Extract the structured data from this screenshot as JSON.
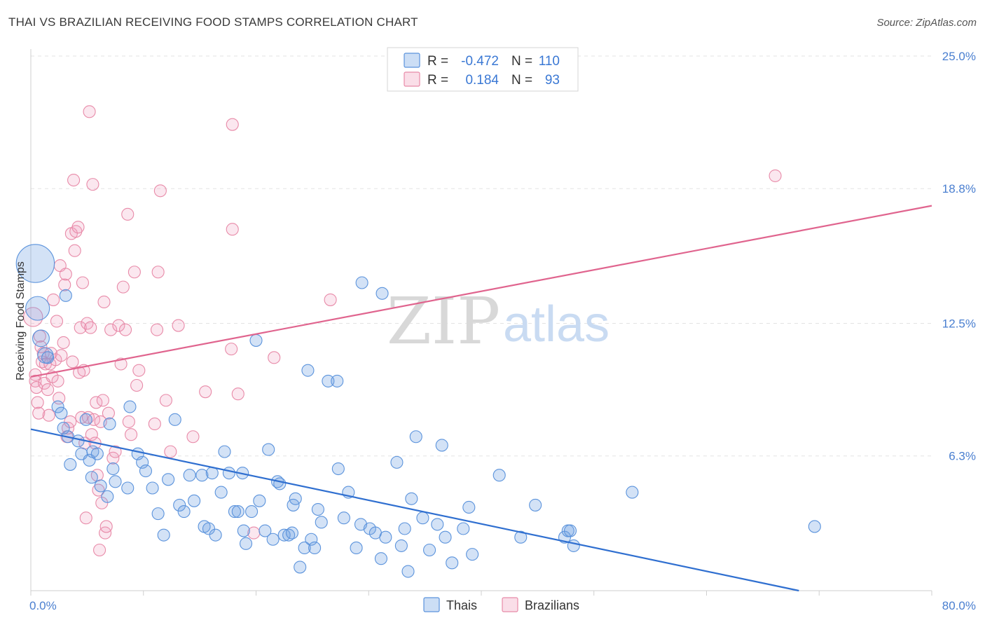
{
  "header": {
    "title": "THAI VS BRAZILIAN RECEIVING FOOD STAMPS CORRELATION CHART",
    "source": "Source: ZipAtlas.com"
  },
  "watermark": {
    "zip": "ZIP",
    "atlas": "atlas"
  },
  "colors": {
    "thai": "#5b93dc",
    "thai_fill": "rgba(110,160,225,0.30)",
    "thai_line": "#2f6fd0",
    "brazil": "#e88aa8",
    "brazil_fill": "rgba(240,160,190,0.25)",
    "brazil_line": "#e0648e",
    "grid": "#e3e3e3",
    "tick_label": "#4a7fd0"
  },
  "legend": {
    "rows": [
      {
        "r_label": "R =",
        "r_value": "-0.472",
        "n_label": "N =",
        "n_value": "110"
      },
      {
        "r_label": "R =",
        "r_value": "0.184",
        "n_label": "N =",
        "n_value": "93"
      }
    ]
  },
  "bottom_legend": {
    "thai": "Thais",
    "brazil": "Brazilians"
  },
  "chart_data": {
    "type": "scatter",
    "title": "THAI VS BRAZILIAN RECEIVING FOOD STAMPS CORRELATION CHART",
    "xlabel": "",
    "ylabel": "Receiving Food Stamps",
    "xlim": [
      0,
      80
    ],
    "ylim": [
      0,
      25
    ],
    "x_tick_labels": [
      "0.0%",
      "80.0%"
    ],
    "y_ticks": [
      6.3,
      12.5,
      18.8,
      25.0
    ],
    "y_tick_labels": [
      "6.3%",
      "12.5%",
      "18.8%",
      "25.0%"
    ],
    "series": [
      {
        "name": "Thais",
        "r": -0.472,
        "n": 110,
        "trend": {
          "x": [
            0,
            68.2
          ],
          "y": [
            7.55,
            0
          ]
        },
        "points": [
          {
            "x": 0.4,
            "y": 15.3,
            "s": 3.2
          },
          {
            "x": 0.6,
            "y": 13.2,
            "s": 2.0
          },
          {
            "x": 0.9,
            "y": 11.8,
            "s": 1.4
          },
          {
            "x": 1.3,
            "y": 11.0,
            "s": 1.3
          },
          {
            "x": 1.5,
            "y": 10.9
          },
          {
            "x": 3.1,
            "y": 13.8
          },
          {
            "x": 2.4,
            "y": 8.6
          },
          {
            "x": 2.7,
            "y": 8.3
          },
          {
            "x": 2.9,
            "y": 7.6
          },
          {
            "x": 3.3,
            "y": 7.2
          },
          {
            "x": 4.2,
            "y": 7.0
          },
          {
            "x": 4.5,
            "y": 6.4
          },
          {
            "x": 3.5,
            "y": 5.9
          },
          {
            "x": 4.9,
            "y": 8.0
          },
          {
            "x": 5.2,
            "y": 6.1
          },
          {
            "x": 5.4,
            "y": 5.3
          },
          {
            "x": 5.5,
            "y": 6.5
          },
          {
            "x": 5.9,
            "y": 6.4
          },
          {
            "x": 6.2,
            "y": 4.9
          },
          {
            "x": 6.8,
            "y": 4.4
          },
          {
            "x": 7.0,
            "y": 7.8
          },
          {
            "x": 7.3,
            "y": 5.7
          },
          {
            "x": 7.5,
            "y": 5.1
          },
          {
            "x": 8.8,
            "y": 8.6
          },
          {
            "x": 8.6,
            "y": 4.8
          },
          {
            "x": 9.5,
            "y": 6.4
          },
          {
            "x": 9.9,
            "y": 6.0
          },
          {
            "x": 10.2,
            "y": 5.6
          },
          {
            "x": 10.8,
            "y": 4.8
          },
          {
            "x": 11.3,
            "y": 3.6
          },
          {
            "x": 11.8,
            "y": 2.6
          },
          {
            "x": 12.2,
            "y": 5.2
          },
          {
            "x": 12.8,
            "y": 8.0
          },
          {
            "x": 13.2,
            "y": 4.0
          },
          {
            "x": 13.6,
            "y": 3.7
          },
          {
            "x": 14.1,
            "y": 5.4
          },
          {
            "x": 14.5,
            "y": 4.2
          },
          {
            "x": 15.2,
            "y": 5.4
          },
          {
            "x": 15.4,
            "y": 3.0
          },
          {
            "x": 15.8,
            "y": 2.9
          },
          {
            "x": 16.1,
            "y": 5.5
          },
          {
            "x": 16.4,
            "y": 2.6
          },
          {
            "x": 16.9,
            "y": 4.6
          },
          {
            "x": 17.2,
            "y": 6.5
          },
          {
            "x": 17.6,
            "y": 5.5
          },
          {
            "x": 18.1,
            "y": 3.7
          },
          {
            "x": 18.4,
            "y": 3.7
          },
          {
            "x": 18.8,
            "y": 5.5
          },
          {
            "x": 19.1,
            "y": 2.2
          },
          {
            "x": 19.6,
            "y": 3.7
          },
          {
            "x": 20.0,
            "y": 11.7
          },
          {
            "x": 20.3,
            "y": 4.2
          },
          {
            "x": 20.8,
            "y": 2.8
          },
          {
            "x": 21.1,
            "y": 6.6
          },
          {
            "x": 21.5,
            "y": 2.4
          },
          {
            "x": 21.9,
            "y": 5.1
          },
          {
            "x": 22.1,
            "y": 5.0
          },
          {
            "x": 22.5,
            "y": 2.6
          },
          {
            "x": 22.9,
            "y": 2.6
          },
          {
            "x": 23.2,
            "y": 2.7
          },
          {
            "x": 23.3,
            "y": 4.0
          },
          {
            "x": 23.5,
            "y": 4.3
          },
          {
            "x": 23.9,
            "y": 1.1
          },
          {
            "x": 24.3,
            "y": 2.0
          },
          {
            "x": 24.6,
            "y": 10.3
          },
          {
            "x": 24.9,
            "y": 2.4
          },
          {
            "x": 25.2,
            "y": 2.0
          },
          {
            "x": 25.5,
            "y": 3.8
          },
          {
            "x": 25.8,
            "y": 3.2
          },
          {
            "x": 26.4,
            "y": 9.8
          },
          {
            "x": 27.2,
            "y": 9.8
          },
          {
            "x": 27.3,
            "y": 5.7
          },
          {
            "x": 27.8,
            "y": 3.4
          },
          {
            "x": 28.2,
            "y": 4.6
          },
          {
            "x": 28.9,
            "y": 2.0
          },
          {
            "x": 29.3,
            "y": 3.1
          },
          {
            "x": 29.4,
            "y": 14.4
          },
          {
            "x": 30.1,
            "y": 2.9
          },
          {
            "x": 30.6,
            "y": 2.7
          },
          {
            "x": 31.1,
            "y": 1.5
          },
          {
            "x": 31.2,
            "y": 13.9
          },
          {
            "x": 31.5,
            "y": 2.5
          },
          {
            "x": 32.5,
            "y": 6.0
          },
          {
            "x": 32.9,
            "y": 2.1
          },
          {
            "x": 33.2,
            "y": 2.9
          },
          {
            "x": 33.5,
            "y": 0.9
          },
          {
            "x": 33.8,
            "y": 4.3
          },
          {
            "x": 34.2,
            "y": 7.2
          },
          {
            "x": 34.8,
            "y": 3.4
          },
          {
            "x": 35.4,
            "y": 1.9
          },
          {
            "x": 36.1,
            "y": 3.1
          },
          {
            "x": 36.5,
            "y": 6.8
          },
          {
            "x": 36.8,
            "y": 2.5
          },
          {
            "x": 37.4,
            "y": 1.3
          },
          {
            "x": 38.4,
            "y": 2.9
          },
          {
            "x": 38.9,
            "y": 3.9
          },
          {
            "x": 39.2,
            "y": 1.7
          },
          {
            "x": 41.6,
            "y": 5.4
          },
          {
            "x": 43.5,
            "y": 2.5
          },
          {
            "x": 44.8,
            "y": 4.0
          },
          {
            "x": 47.4,
            "y": 2.5
          },
          {
            "x": 47.7,
            "y": 2.8
          },
          {
            "x": 47.9,
            "y": 2.8
          },
          {
            "x": 48.2,
            "y": 2.1
          },
          {
            "x": 53.4,
            "y": 4.6
          },
          {
            "x": 69.6,
            "y": 3.0
          },
          {
            "x": 18.9,
            "y": 2.8
          }
        ]
      },
      {
        "name": "Brazilians",
        "r": 0.184,
        "n": 93,
        "trend": {
          "x": [
            0,
            80
          ],
          "y": [
            10.0,
            18.0
          ]
        },
        "points": [
          {
            "x": 0.2,
            "y": 12.8,
            "s": 1.6
          },
          {
            "x": 0.4,
            "y": 10.1
          },
          {
            "x": 0.4,
            "y": 9.8
          },
          {
            "x": 0.5,
            "y": 9.5
          },
          {
            "x": 0.6,
            "y": 8.8
          },
          {
            "x": 0.7,
            "y": 8.3
          },
          {
            "x": 0.8,
            "y": 11.9
          },
          {
            "x": 0.9,
            "y": 11.4
          },
          {
            "x": 1.0,
            "y": 10.7
          },
          {
            "x": 1.1,
            "y": 11.1
          },
          {
            "x": 1.2,
            "y": 9.7
          },
          {
            "x": 1.3,
            "y": 10.6
          },
          {
            "x": 1.5,
            "y": 9.4
          },
          {
            "x": 1.6,
            "y": 8.2
          },
          {
            "x": 1.7,
            "y": 10.6
          },
          {
            "x": 1.8,
            "y": 11.1
          },
          {
            "x": 1.9,
            "y": 10.0
          },
          {
            "x": 2.0,
            "y": 13.6
          },
          {
            "x": 2.2,
            "y": 10.8
          },
          {
            "x": 2.3,
            "y": 12.6
          },
          {
            "x": 2.4,
            "y": 9.8
          },
          {
            "x": 2.5,
            "y": 9.0
          },
          {
            "x": 2.6,
            "y": 15.2
          },
          {
            "x": 2.7,
            "y": 11.0
          },
          {
            "x": 2.9,
            "y": 11.6
          },
          {
            "x": 3.0,
            "y": 14.3
          },
          {
            "x": 3.1,
            "y": 14.8
          },
          {
            "x": 3.2,
            "y": 7.2
          },
          {
            "x": 3.3,
            "y": 7.6
          },
          {
            "x": 3.5,
            "y": 7.9
          },
          {
            "x": 3.6,
            "y": 16.7
          },
          {
            "x": 3.8,
            "y": 19.2
          },
          {
            "x": 3.9,
            "y": 15.9
          },
          {
            "x": 4.0,
            "y": 16.8
          },
          {
            "x": 4.2,
            "y": 17.0
          },
          {
            "x": 4.3,
            "y": 10.2
          },
          {
            "x": 4.4,
            "y": 12.3
          },
          {
            "x": 4.5,
            "y": 8.1
          },
          {
            "x": 4.6,
            "y": 14.4
          },
          {
            "x": 4.7,
            "y": 10.3
          },
          {
            "x": 4.8,
            "y": 6.9
          },
          {
            "x": 4.9,
            "y": 3.4
          },
          {
            "x": 5.0,
            "y": 12.5
          },
          {
            "x": 5.1,
            "y": 8.1
          },
          {
            "x": 5.2,
            "y": 22.4
          },
          {
            "x": 5.3,
            "y": 12.3
          },
          {
            "x": 5.4,
            "y": 7.3
          },
          {
            "x": 5.5,
            "y": 19.0
          },
          {
            "x": 5.6,
            "y": 8.0
          },
          {
            "x": 5.7,
            "y": 6.9
          },
          {
            "x": 5.8,
            "y": 8.8
          },
          {
            "x": 5.9,
            "y": 5.4
          },
          {
            "x": 6.0,
            "y": 4.7
          },
          {
            "x": 6.1,
            "y": 1.9
          },
          {
            "x": 6.2,
            "y": 7.9
          },
          {
            "x": 6.3,
            "y": 4.1
          },
          {
            "x": 6.4,
            "y": 8.9
          },
          {
            "x": 6.5,
            "y": 13.5
          },
          {
            "x": 6.6,
            "y": 2.7
          },
          {
            "x": 6.7,
            "y": 3.0
          },
          {
            "x": 6.9,
            "y": 8.3
          },
          {
            "x": 7.1,
            "y": 12.2
          },
          {
            "x": 7.3,
            "y": 6.2
          },
          {
            "x": 7.5,
            "y": 6.5
          },
          {
            "x": 7.8,
            "y": 12.4
          },
          {
            "x": 8.0,
            "y": 10.6
          },
          {
            "x": 8.2,
            "y": 14.2
          },
          {
            "x": 8.4,
            "y": 12.2
          },
          {
            "x": 8.6,
            "y": 17.6
          },
          {
            "x": 8.9,
            "y": 7.3
          },
          {
            "x": 9.2,
            "y": 14.9
          },
          {
            "x": 9.4,
            "y": 9.6
          },
          {
            "x": 9.6,
            "y": 10.3
          },
          {
            "x": 11.0,
            "y": 7.8
          },
          {
            "x": 11.2,
            "y": 12.2
          },
          {
            "x": 11.3,
            "y": 14.9
          },
          {
            "x": 11.5,
            "y": 18.7
          },
          {
            "x": 12.4,
            "y": 6.5
          },
          {
            "x": 13.1,
            "y": 12.4
          },
          {
            "x": 14.4,
            "y": 7.2
          },
          {
            "x": 15.5,
            "y": 9.3
          },
          {
            "x": 17.8,
            "y": 11.3
          },
          {
            "x": 17.9,
            "y": 16.9
          },
          {
            "x": 17.9,
            "y": 21.8
          },
          {
            "x": 18.4,
            "y": 9.2
          },
          {
            "x": 19.8,
            "y": 2.7
          },
          {
            "x": 21.6,
            "y": 10.9
          },
          {
            "x": 26.6,
            "y": 13.6
          },
          {
            "x": 66.1,
            "y": 19.4
          },
          {
            "x": 8.7,
            "y": 7.9
          },
          {
            "x": 12.0,
            "y": 8.9
          },
          {
            "x": 3.7,
            "y": 10.7
          }
        ]
      }
    ]
  }
}
